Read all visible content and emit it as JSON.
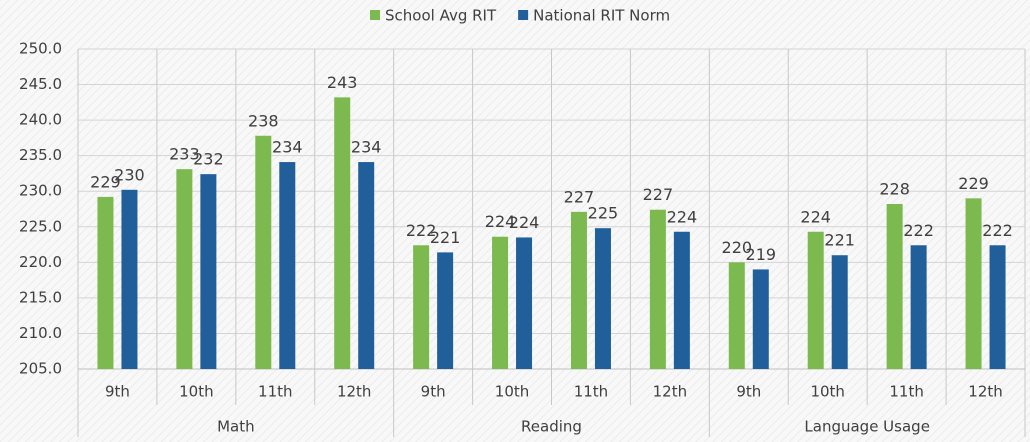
{
  "chart_data": {
    "type": "bar",
    "groups": [
      {
        "label": "Math",
        "categories": [
          "9th",
          "10th",
          "11th",
          "12th"
        ]
      },
      {
        "label": "Reading",
        "categories": [
          "9th",
          "10th",
          "11th",
          "12th"
        ]
      },
      {
        "label": "Language Usage",
        "categories": [
          "9th",
          "10th",
          "11th",
          "12th"
        ]
      }
    ],
    "series": [
      {
        "name": "School Avg RIT",
        "color": "#7cb94f",
        "values": [
          229.2,
          233.1,
          237.8,
          243.2,
          222.4,
          223.6,
          227.1,
          227.4,
          220.0,
          224.3,
          228.2,
          229.0
        ],
        "value_labels": [
          "229",
          "233",
          "238",
          "243",
          "222",
          "224",
          "227",
          "227",
          "220",
          "224",
          "228",
          "229"
        ]
      },
      {
        "name": "National RIT Norm",
        "color": "#215f9a",
        "values": [
          230.2,
          232.4,
          234.1,
          234.1,
          221.4,
          223.5,
          224.8,
          224.3,
          219.0,
          221.0,
          222.4,
          222.4
        ],
        "value_labels": [
          "230",
          "232",
          "234",
          "234",
          "221",
          "224",
          "225",
          "224",
          "219",
          "221",
          "222",
          "222"
        ]
      }
    ],
    "ylim": [
      205,
      250
    ],
    "yticks": [
      {
        "value": 205,
        "label": "205.0"
      },
      {
        "value": 210,
        "label": "210.0"
      },
      {
        "value": 215,
        "label": "215.0"
      },
      {
        "value": 220,
        "label": "220.0"
      },
      {
        "value": 225,
        "label": "225.0"
      },
      {
        "value": 230,
        "label": "230.0"
      },
      {
        "value": 235,
        "label": "235.0"
      },
      {
        "value": 240,
        "label": "240.0"
      },
      {
        "value": 245,
        "label": "245.0"
      },
      {
        "value": 250,
        "label": "250.0"
      }
    ],
    "grid": true,
    "legend": "top"
  }
}
